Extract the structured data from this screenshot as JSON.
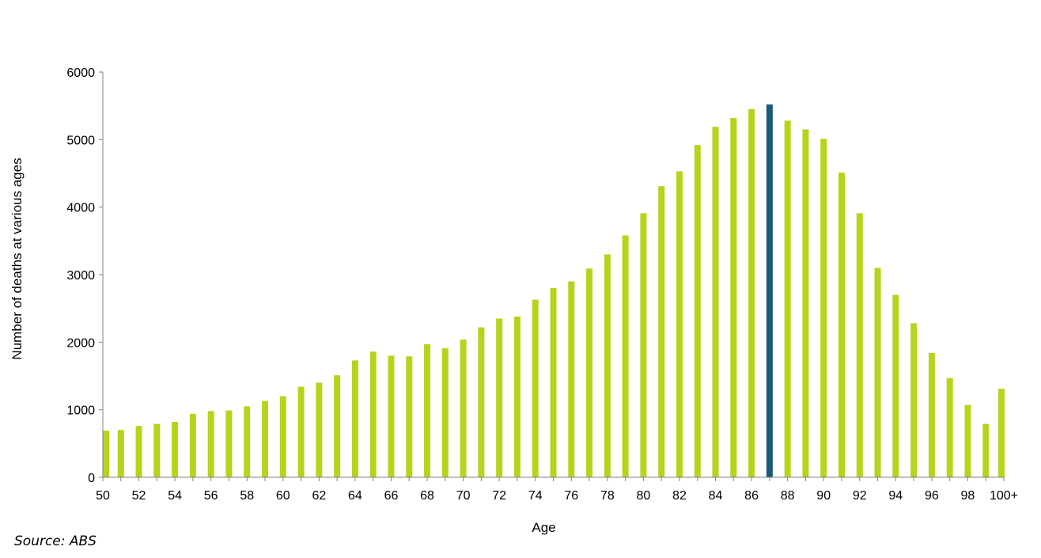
{
  "chart_data": {
    "type": "bar",
    "xlabel": "Age",
    "ylabel": "Number  of deaths at various  ages",
    "ylim": [
      0,
      6000
    ],
    "yticks": [
      0,
      1000,
      2000,
      3000,
      4000,
      5000,
      6000
    ],
    "colors": {
      "bar": "#b5d41c",
      "highlight": "#1a5b78",
      "axis": "#808080"
    },
    "highlight_category": "87",
    "categories": [
      "50",
      "51",
      "52",
      "53",
      "54",
      "55",
      "56",
      "57",
      "58",
      "59",
      "60",
      "61",
      "62",
      "63",
      "64",
      "65",
      "66",
      "67",
      "68",
      "69",
      "70",
      "71",
      "72",
      "73",
      "74",
      "75",
      "76",
      "77",
      "78",
      "79",
      "80",
      "81",
      "82",
      "83",
      "84",
      "85",
      "86",
      "87",
      "88",
      "89",
      "90",
      "91",
      "92",
      "93",
      "94",
      "95",
      "96",
      "97",
      "98",
      "99",
      "100+"
    ],
    "values": [
      690,
      700,
      760,
      790,
      820,
      940,
      980,
      990,
      1050,
      1130,
      1200,
      1340,
      1400,
      1510,
      1730,
      1860,
      1800,
      1790,
      1970,
      1910,
      2040,
      2220,
      2350,
      2380,
      2630,
      2800,
      2900,
      3090,
      3300,
      3580,
      3910,
      4310,
      4530,
      4920,
      5190,
      5320,
      5450,
      5520,
      5280,
      5150,
      5010,
      4510,
      3910,
      3100,
      2700,
      2280,
      1840,
      1470,
      1070,
      790,
      1310
    ],
    "xtick_labels": [
      "50",
      "52",
      "54",
      "56",
      "58",
      "60",
      "62",
      "64",
      "66",
      "68",
      "70",
      "72",
      "74",
      "76",
      "78",
      "80",
      "82",
      "84",
      "86",
      "88",
      "90",
      "92",
      "94",
      "96",
      "98",
      "100+"
    ]
  },
  "source_text": "Source: ABS"
}
